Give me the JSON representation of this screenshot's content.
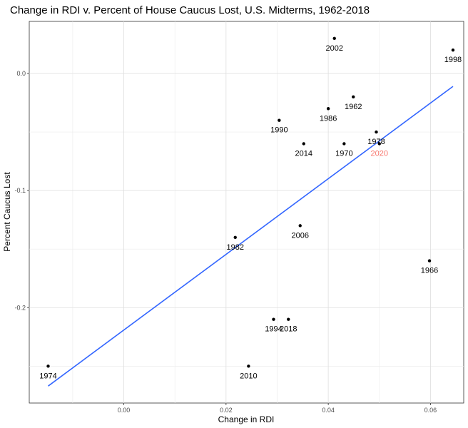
{
  "chart_data": {
    "type": "scatter",
    "title": "Change in RDI v. Percent of House Caucus Lost, U.S. Midterms, 1962-2018",
    "xlabel": "Change in RDI",
    "ylabel": "Percent Caucus Lost",
    "xlim": [
      -0.0185,
      0.0665
    ],
    "ylim": [
      -0.2815,
      0.0445
    ],
    "x_ticks": [
      0.0,
      0.02,
      0.04,
      0.06
    ],
    "x_tick_labels": [
      "0.00",
      "0.02",
      "0.04",
      "0.06"
    ],
    "y_ticks": [
      -0.2,
      -0.1,
      0.0
    ],
    "y_tick_labels": [
      "-0.2",
      "-0.1",
      "0.0"
    ],
    "grid": true,
    "points": [
      {
        "label": "1962",
        "x": 0.0449,
        "y": -0.02
      },
      {
        "label": "1966",
        "x": 0.0598,
        "y": -0.16
      },
      {
        "label": "1970",
        "x": 0.0431,
        "y": -0.06
      },
      {
        "label": "1974",
        "x": -0.0148,
        "y": -0.25
      },
      {
        "label": "1978",
        "x": 0.0494,
        "y": -0.05
      },
      {
        "label": "1982",
        "x": 0.0218,
        "y": -0.14
      },
      {
        "label": "1986",
        "x": 0.04,
        "y": -0.03
      },
      {
        "label": "1990",
        "x": 0.0304,
        "y": -0.04
      },
      {
        "label": "1994",
        "x": 0.0293,
        "y": -0.21
      },
      {
        "label": "1998",
        "x": 0.0644,
        "y": 0.02
      },
      {
        "label": "2002",
        "x": 0.0412,
        "y": 0.03
      },
      {
        "label": "2006",
        "x": 0.0345,
        "y": -0.13
      },
      {
        "label": "2010",
        "x": 0.0244,
        "y": -0.25
      },
      {
        "label": "2014",
        "x": 0.0352,
        "y": -0.06
      },
      {
        "label": "2018",
        "x": 0.0322,
        "y": -0.21
      },
      {
        "label": "2020",
        "x": 0.05,
        "y": -0.06,
        "color": "#f8766d"
      }
    ],
    "trendline": {
      "type": "linear",
      "color": "#3366ff",
      "x": [
        -0.0148,
        0.0644
      ],
      "y": [
        -0.267,
        -0.011
      ]
    }
  }
}
